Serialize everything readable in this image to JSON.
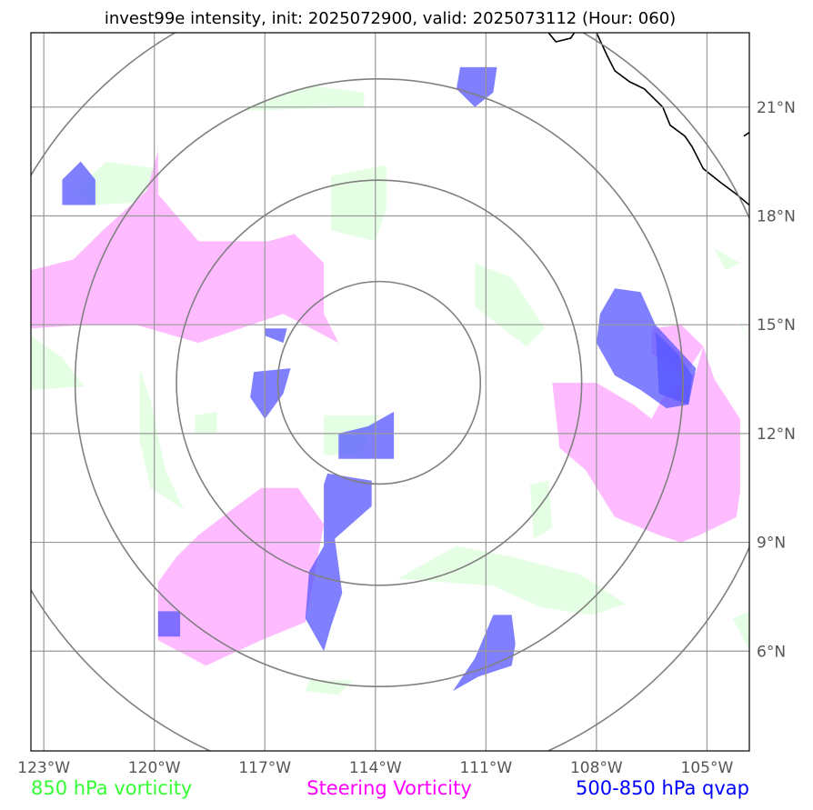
{
  "chart_data": {
    "type": "map",
    "title": "invest99e intensity, init: 2025072900, valid: 2025073112 (Hour: 060)",
    "xlim": [
      -123.35,
      -103.85
    ],
    "ylim": [
      3.25,
      23.05
    ],
    "x_ticks": [
      -123,
      -120,
      -117,
      -114,
      -111,
      -108,
      -105
    ],
    "x_tick_labels": [
      "123°W",
      "120°W",
      "117°W",
      "114°W",
      "111°W",
      "108°W",
      "105°W"
    ],
    "y_ticks": [
      6,
      9,
      12,
      15,
      18,
      21
    ],
    "y_tick_labels": [
      "6°N",
      "9°N",
      "12°N",
      "15°N",
      "18°N",
      "21°N"
    ],
    "grid": true,
    "center": {
      "lon": -113.9,
      "lat": 13.4
    },
    "range_rings_deg": [
      2.75,
      5.5,
      8.25,
      11.0
    ],
    "legend": [
      {
        "label": "850 hPa vorticity",
        "color": "#33ff33"
      },
      {
        "label": "Steering Vorticity",
        "color": "#ff00ff"
      },
      {
        "label": "500-850 hPa qvap",
        "color": "#0000ff"
      }
    ],
    "layers": [
      {
        "name": "850 hPa vorticity",
        "fill": "#e5ffe5",
        "polygons": [
          [
            [
              -117.5,
              21.0
            ],
            [
              -115.8,
              21.6
            ],
            [
              -114.3,
              21.4
            ],
            [
              -114.3,
              21.0
            ],
            [
              -117.5,
              20.9
            ]
          ],
          [
            [
              -122.2,
              18.7
            ],
            [
              -121.3,
              19.5
            ],
            [
              -119.9,
              19.3
            ],
            [
              -119.9,
              18.4
            ],
            [
              -121.7,
              18.3
            ]
          ],
          [
            [
              -115.2,
              19.1
            ],
            [
              -113.7,
              19.4
            ],
            [
              -113.7,
              18.2
            ],
            [
              -114.0,
              17.3
            ],
            [
              -115.2,
              17.6
            ]
          ],
          [
            [
              -111.3,
              16.7
            ],
            [
              -110.3,
              16.3
            ],
            [
              -109.4,
              14.9
            ],
            [
              -109.9,
              14.4
            ],
            [
              -111.3,
              15.5
            ]
          ],
          [
            [
              -123.35,
              14.7
            ],
            [
              -122.5,
              14.1
            ],
            [
              -121.9,
              13.3
            ],
            [
              -123.35,
              13.2
            ]
          ],
          [
            [
              -120.4,
              13.8
            ],
            [
              -120.1,
              12.9
            ],
            [
              -119.7,
              11.0
            ],
            [
              -119.2,
              9.9
            ],
            [
              -120.1,
              10.5
            ],
            [
              -120.4,
              11.8
            ]
          ],
          [
            [
              -118.9,
              12.5
            ],
            [
              -118.3,
              12.6
            ],
            [
              -118.3,
              12.0
            ],
            [
              -118.9,
              12.0
            ]
          ],
          [
            [
              -115.4,
              12.5
            ],
            [
              -113.9,
              12.5
            ],
            [
              -114.4,
              11.4
            ],
            [
              -115.4,
              11.4
            ]
          ],
          [
            [
              -109.8,
              10.6
            ],
            [
              -109.3,
              10.7
            ],
            [
              -109.2,
              9.4
            ],
            [
              -109.7,
              9.1
            ]
          ],
          [
            [
              -113.4,
              8.0
            ],
            [
              -111.8,
              8.9
            ],
            [
              -110.3,
              8.6
            ],
            [
              -108.4,
              8.1
            ],
            [
              -107.2,
              7.3
            ],
            [
              -108.1,
              7.0
            ],
            [
              -109.5,
              7.2
            ],
            [
              -110.8,
              7.8
            ]
          ],
          [
            [
              -104.8,
              17.1
            ],
            [
              -104.1,
              16.7
            ],
            [
              -104.5,
              16.5
            ]
          ],
          [
            [
              -104.1,
              15.1
            ],
            [
              -103.85,
              14.6
            ],
            [
              -104.1,
              15.0
            ]
          ],
          [
            [
              -103.85,
              7.1
            ],
            [
              -104.3,
              6.9
            ],
            [
              -103.85,
              6.0
            ]
          ],
          [
            [
              -115.8,
              5.2
            ],
            [
              -114.6,
              5.2
            ],
            [
              -115.0,
              4.8
            ],
            [
              -115.9,
              4.9
            ]
          ]
        ]
      },
      {
        "name": "Steering Vorticity",
        "fill": "#ffbbff",
        "polygons": [
          [
            [
              -123.35,
              16.5
            ],
            [
              -122.2,
              16.8
            ],
            [
              -121.4,
              17.6
            ],
            [
              -120.2,
              18.7
            ],
            [
              -119.9,
              19.8
            ],
            [
              -119.9,
              18.6
            ],
            [
              -118.8,
              17.3
            ],
            [
              -116.9,
              17.3
            ],
            [
              -116.2,
              17.5
            ],
            [
              -115.4,
              16.7
            ],
            [
              -115.4,
              15.3
            ],
            [
              -115.0,
              14.5
            ],
            [
              -116.5,
              15.3
            ],
            [
              -118.8,
              14.5
            ],
            [
              -120.5,
              15.0
            ],
            [
              -121.8,
              15.0
            ],
            [
              -123.35,
              14.9
            ]
          ],
          [
            [
              -119.4,
              8.6
            ],
            [
              -118.8,
              9.2
            ],
            [
              -117.9,
              9.9
            ],
            [
              -117.1,
              10.5
            ],
            [
              -116.1,
              10.5
            ],
            [
              -115.4,
              9.5
            ],
            [
              -115.6,
              8.4
            ],
            [
              -115.9,
              6.8
            ],
            [
              -117.1,
              6.3
            ],
            [
              -118.6,
              5.6
            ],
            [
              -119.9,
              6.3
            ],
            [
              -119.9,
              7.9
            ]
          ],
          [
            [
              -109.2,
              13.4
            ],
            [
              -108.0,
              13.4
            ],
            [
              -107.0,
              12.8
            ],
            [
              -106.5,
              12.4
            ],
            [
              -106.2,
              13.0
            ],
            [
              -105.3,
              13.7
            ],
            [
              -105.1,
              14.4
            ],
            [
              -104.8,
              13.5
            ],
            [
              -104.1,
              12.4
            ],
            [
              -104.1,
              10.4
            ],
            [
              -104.2,
              9.7
            ],
            [
              -105.2,
              9.2
            ],
            [
              -105.7,
              9.0
            ],
            [
              -106.3,
              9.2
            ],
            [
              -107.5,
              9.7
            ],
            [
              -108.3,
              11.0
            ],
            [
              -109.0,
              11.6
            ]
          ],
          [
            [
              -106.5,
              14.9
            ],
            [
              -105.7,
              15.0
            ],
            [
              -105.1,
              14.4
            ],
            [
              -105.6,
              13.6
            ],
            [
              -106.5,
              14.2
            ]
          ]
        ]
      },
      {
        "name": "500-850 hPa qvap",
        "fill": "#5555ff",
        "opacity": 0.75,
        "polygons": [
          [
            [
              -111.7,
              22.1
            ],
            [
              -110.7,
              22.1
            ],
            [
              -110.8,
              21.4
            ],
            [
              -111.3,
              21.0
            ],
            [
              -111.8,
              21.5
            ]
          ],
          [
            [
              -122.5,
              19.0
            ],
            [
              -122.0,
              19.5
            ],
            [
              -121.6,
              19.0
            ],
            [
              -121.6,
              18.3
            ],
            [
              -122.5,
              18.3
            ]
          ],
          [
            [
              -117.0,
              14.9
            ],
            [
              -116.4,
              14.9
            ],
            [
              -116.5,
              14.5
            ],
            [
              -117.0,
              14.7
            ]
          ],
          [
            [
              -117.3,
              13.7
            ],
            [
              -116.3,
              13.8
            ],
            [
              -116.5,
              13.1
            ],
            [
              -117.0,
              12.4
            ],
            [
              -117.4,
              13.0
            ]
          ],
          [
            [
              -115.0,
              12.0
            ],
            [
              -114.2,
              12.2
            ],
            [
              -113.5,
              12.6
            ],
            [
              -113.5,
              11.3
            ],
            [
              -115.0,
              11.3
            ]
          ],
          [
            [
              -115.3,
              10.9
            ],
            [
              -114.1,
              10.7
            ],
            [
              -114.1,
              10.0
            ],
            [
              -115.1,
              9.1
            ],
            [
              -114.9,
              7.6
            ],
            [
              -115.2,
              6.7
            ],
            [
              -115.4,
              6.0
            ],
            [
              -115.9,
              6.9
            ],
            [
              -115.8,
              8.2
            ],
            [
              -115.4,
              8.9
            ],
            [
              -115.4,
              10.6
            ]
          ],
          [
            [
              -119.9,
              7.1
            ],
            [
              -119.3,
              7.1
            ],
            [
              -119.3,
              6.4
            ],
            [
              -119.9,
              6.4
            ]
          ],
          [
            [
              -110.8,
              7.0
            ],
            [
              -110.3,
              7.0
            ],
            [
              -110.2,
              6.2
            ],
            [
              -110.3,
              5.6
            ],
            [
              -111.2,
              5.3
            ],
            [
              -111.9,
              4.9
            ],
            [
              -111.3,
              5.8
            ]
          ],
          [
            [
              -107.5,
              16.0
            ],
            [
              -106.8,
              15.9
            ],
            [
              -106.4,
              15.0
            ],
            [
              -105.3,
              13.8
            ],
            [
              -105.5,
              12.8
            ],
            [
              -106.1,
              12.7
            ],
            [
              -106.8,
              13.2
            ],
            [
              -107.5,
              13.6
            ],
            [
              -108.0,
              14.5
            ],
            [
              -107.9,
              15.3
            ]
          ],
          [
            [
              -106.4,
              14.8
            ],
            [
              -105.8,
              14.2
            ],
            [
              -105.4,
              13.6
            ],
            [
              -105.5,
              12.8
            ],
            [
              -106.3,
              13.1
            ]
          ]
        ]
      }
    ],
    "coastline": [
      [
        [
          -109.3,
          23.05
        ],
        [
          -109.1,
          22.8
        ],
        [
          -108.7,
          22.9
        ],
        [
          -108.6,
          23.05
        ]
      ],
      [
        [
          -108.0,
          23.05
        ],
        [
          -107.7,
          22.4
        ],
        [
          -107.5,
          22.0
        ],
        [
          -107.1,
          21.7
        ],
        [
          -106.7,
          21.5
        ],
        [
          -106.2,
          21.0
        ],
        [
          -106.0,
          20.5
        ],
        [
          -105.6,
          20.2
        ],
        [
          -105.4,
          19.9
        ],
        [
          -105.1,
          19.3
        ],
        [
          -104.6,
          18.9
        ],
        [
          -104.2,
          18.6
        ],
        [
          -103.85,
          18.3
        ]
      ],
      [
        [
          -103.85,
          20.3
        ],
        [
          -104.0,
          20.2
        ]
      ]
    ]
  }
}
